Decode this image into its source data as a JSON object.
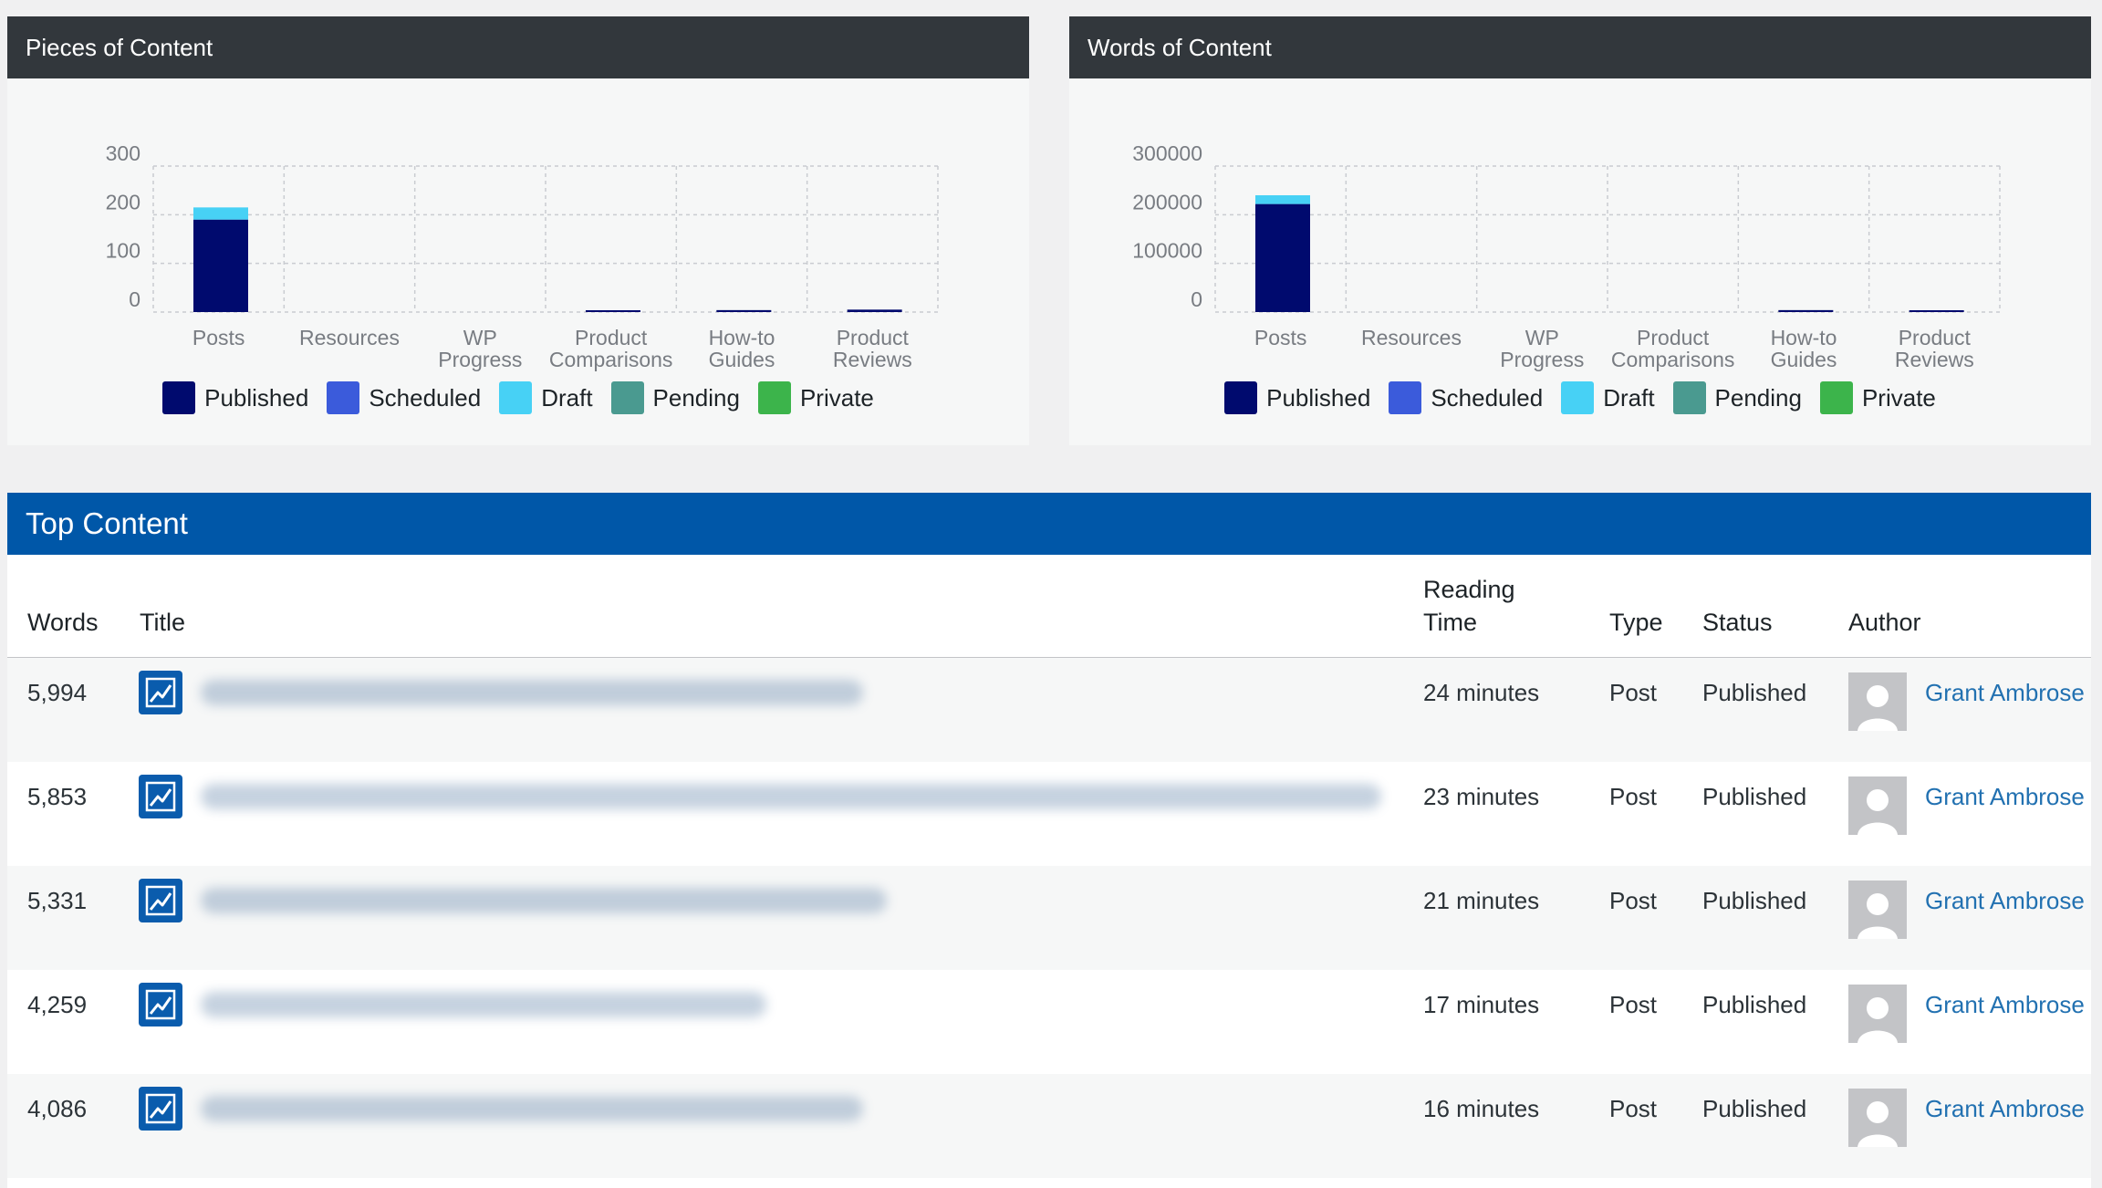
{
  "charts": [
    {
      "panel_title": "Pieces of Content",
      "chart_data": {
        "type": "bar",
        "stacked": true,
        "categories": [
          [
            "Posts"
          ],
          [
            "Resources"
          ],
          [
            "WP",
            "Progress"
          ],
          [
            "Product",
            "Comparisons"
          ],
          [
            "How-to",
            "Guides"
          ],
          [
            "Product",
            "Reviews"
          ]
        ],
        "yticks": [
          "0",
          "100",
          "200",
          "300"
        ],
        "ylim": [
          0,
          300
        ],
        "series": [
          {
            "name": "Published",
            "color": "#000a6e",
            "values": [
              190,
              0,
              0,
              2,
              4,
              5
            ]
          },
          {
            "name": "Scheduled",
            "color": "#3b5bdb",
            "values": [
              0,
              0,
              0,
              0,
              0,
              0
            ]
          },
          {
            "name": "Draft",
            "color": "#47d1f5",
            "values": [
              25,
              0,
              0,
              0,
              0,
              0
            ]
          },
          {
            "name": "Pending",
            "color": "#4a9a90",
            "values": [
              0,
              0,
              0,
              0,
              0,
              0
            ]
          },
          {
            "name": "Private",
            "color": "#3cb44b",
            "values": [
              0,
              0,
              0,
              0,
              0,
              0
            ]
          }
        ],
        "grid": true,
        "legend": "bottom"
      }
    },
    {
      "panel_title": "Words of Content",
      "chart_data": {
        "type": "bar",
        "stacked": true,
        "categories": [
          [
            "Posts"
          ],
          [
            "Resources"
          ],
          [
            "WP",
            "Progress"
          ],
          [
            "Product",
            "Comparisons"
          ],
          [
            "How-to",
            "Guides"
          ],
          [
            "Product",
            "Reviews"
          ]
        ],
        "yticks": [
          "0",
          "100000",
          "200000",
          "300000"
        ],
        "ylim": [
          0,
          300000
        ],
        "series": [
          {
            "name": "Published",
            "color": "#000a6e",
            "values": [
              222000,
              0,
              0,
              0,
              4000,
              3000
            ]
          },
          {
            "name": "Scheduled",
            "color": "#3b5bdb",
            "values": [
              0,
              0,
              0,
              0,
              0,
              0
            ]
          },
          {
            "name": "Draft",
            "color": "#47d1f5",
            "values": [
              18000,
              0,
              0,
              0,
              0,
              0
            ]
          },
          {
            "name": "Pending",
            "color": "#4a9a90",
            "values": [
              0,
              0,
              0,
              0,
              0,
              0
            ]
          },
          {
            "name": "Private",
            "color": "#3cb44b",
            "values": [
              0,
              0,
              0,
              0,
              0,
              0
            ]
          }
        ],
        "grid": true,
        "legend": "bottom"
      }
    }
  ],
  "top_content": {
    "title": "Top Content",
    "columns": {
      "words": "Words",
      "title": "Title",
      "reading_time_1": "Reading",
      "reading_time_2": "Time",
      "type": "Type",
      "status": "Status",
      "author": "Author"
    },
    "rows": [
      {
        "words": "5,994",
        "reading_time": "24 minutes",
        "type": "Post",
        "status": "Published",
        "author": "Grant Ambrose",
        "title_blur": 0.55
      },
      {
        "words": "5,853",
        "reading_time": "23 minutes",
        "type": "Post",
        "status": "Published",
        "author": "Grant Ambrose",
        "title_blur": 0.98
      },
      {
        "words": "5,331",
        "reading_time": "21 minutes",
        "type": "Post",
        "status": "Published",
        "author": "Grant Ambrose",
        "title_blur": 0.57
      },
      {
        "words": "4,259",
        "reading_time": "17 minutes",
        "type": "Post",
        "status": "Published",
        "author": "Grant Ambrose",
        "title_blur": 0.47
      },
      {
        "words": "4,086",
        "reading_time": "16 minutes",
        "type": "Post",
        "status": "Published",
        "author": "Grant Ambrose",
        "title_blur": 0.55
      }
    ],
    "icon": "chart-trend-icon"
  }
}
